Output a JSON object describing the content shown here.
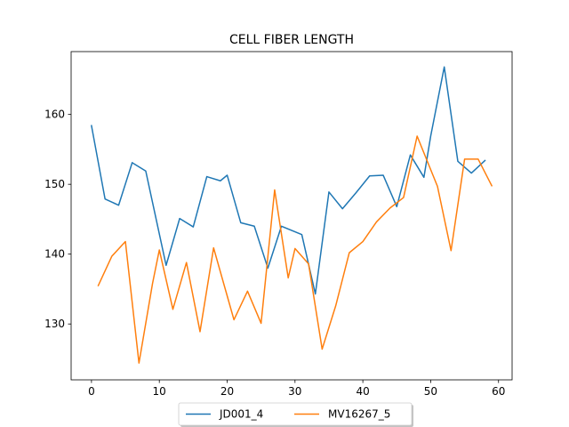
{
  "chart_data": {
    "type": "line",
    "title": "CELL FIBER LENGTH",
    "xlabel": "",
    "ylabel": "",
    "xlim": [
      -3,
      62
    ],
    "ylim": [
      122,
      169
    ],
    "xticks": [
      0,
      10,
      20,
      30,
      40,
      50,
      60
    ],
    "yticks": [
      130,
      140,
      150,
      160
    ],
    "grid": false,
    "legend": {
      "position": "bottom-center",
      "columns": 2
    },
    "series": [
      {
        "name": "JD001_4",
        "color": "#1f77b4",
        "x": [
          0,
          2,
          4,
          6,
          8,
          11,
          13,
          15,
          17,
          19,
          20,
          22,
          24,
          26,
          28,
          31,
          33,
          35,
          37,
          39,
          41,
          43,
          45,
          47,
          49,
          50,
          52,
          54,
          56,
          58
        ],
        "y": [
          158.4,
          147.9,
          147.0,
          153.1,
          151.9,
          138.4,
          145.1,
          143.9,
          151.1,
          150.5,
          151.3,
          144.5,
          144.0,
          138.0,
          144.0,
          142.8,
          134.3,
          148.9,
          146.5,
          148.8,
          151.2,
          151.3,
          146.8,
          154.2,
          151.0,
          156.9,
          166.8,
          153.3,
          151.6,
          153.4
        ]
      },
      {
        "name": "MV16267_5",
        "color": "#ff7f0e",
        "x": [
          1,
          3,
          5,
          7,
          9,
          10,
          12,
          14,
          16,
          18,
          21,
          23,
          25,
          27,
          29,
          30,
          32,
          34,
          36,
          38,
          40,
          42,
          44,
          46,
          48,
          51,
          53,
          55,
          57,
          59
        ],
        "y": [
          135.5,
          139.7,
          141.8,
          124.4,
          135.8,
          140.6,
          132.1,
          138.8,
          128.9,
          140.9,
          130.6,
          134.7,
          130.1,
          149.2,
          136.6,
          140.8,
          138.6,
          126.4,
          132.6,
          140.2,
          141.8,
          144.6,
          146.6,
          148.1,
          156.9,
          149.7,
          140.5,
          153.6,
          153.6,
          149.8
        ]
      }
    ]
  }
}
